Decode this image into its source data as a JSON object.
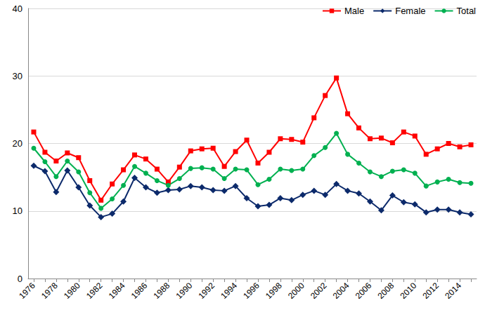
{
  "chart_data": {
    "type": "line",
    "categories": [
      "1976",
      null,
      "1978",
      null,
      "1980",
      null,
      "1982",
      null,
      "1984",
      null,
      "1986",
      null,
      "1988",
      null,
      "1990",
      null,
      "1992",
      null,
      "1994",
      null,
      "1996",
      null,
      "1998",
      null,
      "2000",
      null,
      "2002",
      null,
      "2004",
      null,
      "2006",
      null,
      "2008",
      null,
      "2010",
      null,
      "2012",
      null,
      "2014",
      null
    ],
    "series": [
      {
        "name": "Male",
        "color": "#ff0000",
        "marker": "square",
        "values": [
          21.7,
          18.7,
          17.4,
          18.6,
          17.9,
          14.5,
          11.6,
          14.0,
          16.1,
          18.3,
          17.7,
          16.2,
          14.3,
          16.5,
          18.9,
          19.2,
          19.3,
          16.6,
          18.8,
          20.5,
          17.1,
          18.7,
          20.7,
          20.6,
          20.2,
          23.8,
          27.1,
          29.7,
          24.4,
          22.3,
          20.7,
          20.8,
          20.1,
          21.7,
          21.1,
          18.4,
          19.2,
          20.0,
          19.5,
          19.8
        ]
      },
      {
        "name": "Female",
        "color": "#0c2a6b",
        "marker": "diamond",
        "values": [
          16.7,
          15.9,
          12.8,
          16.0,
          13.5,
          10.8,
          9.1,
          9.6,
          11.4,
          14.9,
          13.5,
          12.7,
          13.1,
          13.2,
          13.7,
          13.5,
          13.1,
          13.0,
          13.7,
          11.9,
          10.7,
          10.9,
          11.9,
          11.6,
          12.4,
          13.0,
          12.4,
          14.0,
          13.0,
          12.6,
          11.4,
          10.1,
          12.3,
          11.3,
          11.0,
          9.8,
          10.2,
          10.2,
          9.8,
          9.5
        ]
      },
      {
        "name": "Total",
        "color": "#00b050",
        "marker": "circle",
        "values": [
          19.3,
          17.3,
          15.1,
          17.4,
          15.8,
          12.7,
          10.4,
          11.8,
          13.8,
          16.6,
          15.6,
          14.5,
          13.8,
          14.8,
          16.3,
          16.4,
          16.2,
          14.8,
          16.2,
          16.1,
          13.9,
          14.7,
          16.2,
          16.0,
          16.2,
          18.2,
          19.4,
          21.5,
          18.4,
          17.1,
          15.8,
          15.1,
          15.9,
          16.1,
          15.6,
          13.7,
          14.3,
          14.7,
          14.2,
          14.1
        ]
      }
    ],
    "ylim": [
      0,
      40
    ],
    "yticks": [
      0,
      10,
      20,
      30,
      40
    ],
    "grid": true,
    "legend": "upper right"
  }
}
